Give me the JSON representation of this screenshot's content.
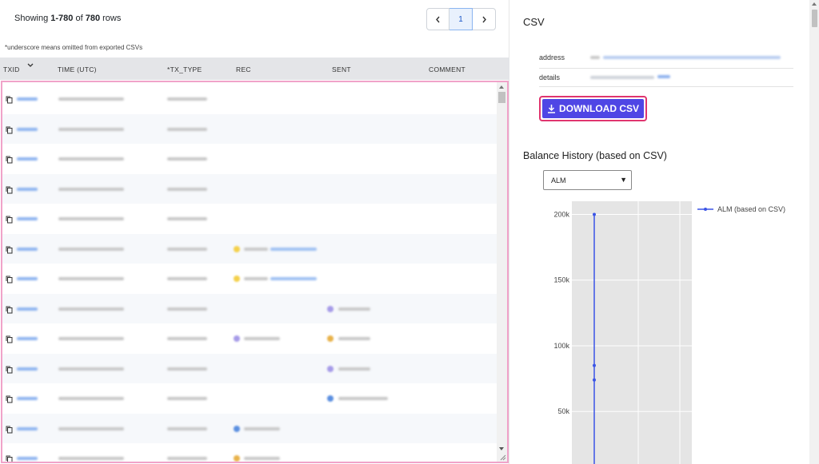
{
  "table": {
    "rows_prefix": "Showing ",
    "rows_range": "1-780",
    "rows_mid": " of ",
    "rows_total": "780",
    "rows_suffix": " rows",
    "pager": {
      "prev": "<",
      "current": "1",
      "next": ">"
    },
    "note": "*underscore means omitted from exported CSVs",
    "columns": [
      "TXID",
      "TIME (UTC)",
      "*TX_TYPE",
      "REC",
      "SENT",
      "COMMENT"
    ]
  },
  "csv": {
    "title": "CSV",
    "address_label": "address",
    "details_label": "details",
    "download_label": "DOWNLOAD CSV"
  },
  "balance": {
    "title": "Balance History (based on CSV)",
    "selected_asset": "ALM"
  },
  "chart_data": {
    "type": "line",
    "series": [
      {
        "name": "ALM (based on CSV)",
        "values": [
          200000,
          85000,
          74000,
          0
        ]
      }
    ],
    "ytick_labels": [
      "200k",
      "150k",
      "100k",
      "50k"
    ],
    "ylim": [
      10000,
      210000
    ],
    "grid": true,
    "legend": "top-right",
    "color": "#3b55e6"
  }
}
